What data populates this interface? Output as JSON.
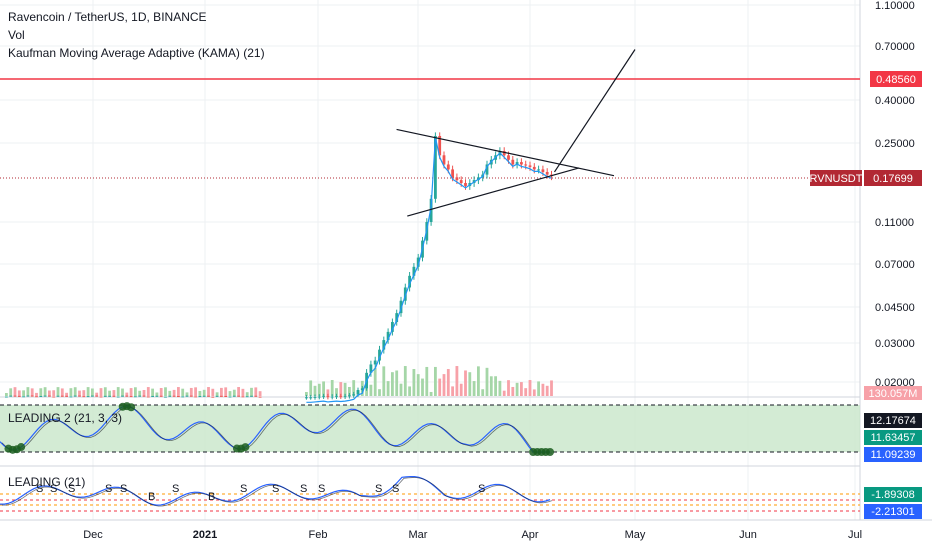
{
  "header": {
    "symbol_line": "Ravencoin / TetherUS, 1D, BINANCE",
    "vol_label": "Vol",
    "kama_label": "Kaufman Moving Average Adaptive (KAMA) (21)"
  },
  "chart_data": {
    "type": "candlestick",
    "price_axis_ticks": [
      "1.10000",
      "0.70000",
      "0.40000",
      "0.25000",
      "0.11000",
      "0.07000",
      "0.04500",
      "0.03000",
      "0.02000"
    ],
    "scale": "log",
    "x_ticks": [
      "Dec",
      "2021",
      "Feb",
      "Mar",
      "Apr",
      "May",
      "Jun",
      "Jul"
    ],
    "x_dates": [
      "2020-12-01",
      "2021-01-01",
      "2021-02-01",
      "2021-03-01",
      "2021-04-01",
      "2021-05-01",
      "2021-06-01",
      "2021-07-01"
    ],
    "horizontal_line": {
      "value": "0.48560",
      "color": "#f23645"
    },
    "last_price": {
      "label": "RVNUSDT",
      "value": "0.17699",
      "color": "#b22833"
    },
    "volume_badge": "130.057M",
    "price_series": [
      0.0155,
      0.0155,
      0.0156,
      0.0157,
      0.0158,
      0.0156,
      0.0157,
      0.0158,
      0.0157,
      0.0158,
      0.016,
      0.0163,
      0.0175,
      0.018,
      0.022,
      0.024,
      0.025,
      0.028,
      0.031,
      0.034,
      0.038,
      0.042,
      0.048,
      0.055,
      0.062,
      0.068,
      0.075,
      0.09,
      0.11,
      0.14,
      0.27,
      0.22,
      0.2,
      0.19,
      0.175,
      0.17,
      0.165,
      0.16,
      0.165,
      0.17,
      0.175,
      0.18,
      0.2,
      0.21,
      0.22,
      0.23,
      0.22,
      0.21,
      0.2,
      0.205,
      0.2,
      0.198,
      0.195,
      0.19,
      0.19,
      0.185,
      0.18,
      0.177
    ],
    "pattern_lines": [
      {
        "from": [
          "2021-02-23",
          0.29
        ],
        "to": [
          "2021-04-25",
          0.178
        ]
      },
      {
        "from": [
          "2021-02-26",
          0.117
        ],
        "to": [
          "2021-04-15",
          0.193
        ]
      },
      {
        "from": [
          "2021-04-08",
          0.185
        ],
        "to": [
          "2021-05-01",
          0.675
        ]
      }
    ],
    "panels": [
      {
        "name": "LEADING 2 (21, 3, 3)",
        "values": [
          "12.17674",
          "11.63457",
          "11.09239"
        ],
        "colors": [
          "#131722",
          "#089981",
          "#2962ff"
        ]
      },
      {
        "name": "LEADING (21)",
        "values": [
          "-1.89308",
          "-2.21301"
        ],
        "colors": [
          "#089981",
          "#2962ff"
        ]
      }
    ],
    "signal_labels": [
      "S",
      "S",
      "S",
      "S",
      "S",
      "B",
      "S",
      "B",
      "S",
      "S",
      "S",
      "S",
      "S",
      "S",
      "S"
    ]
  }
}
